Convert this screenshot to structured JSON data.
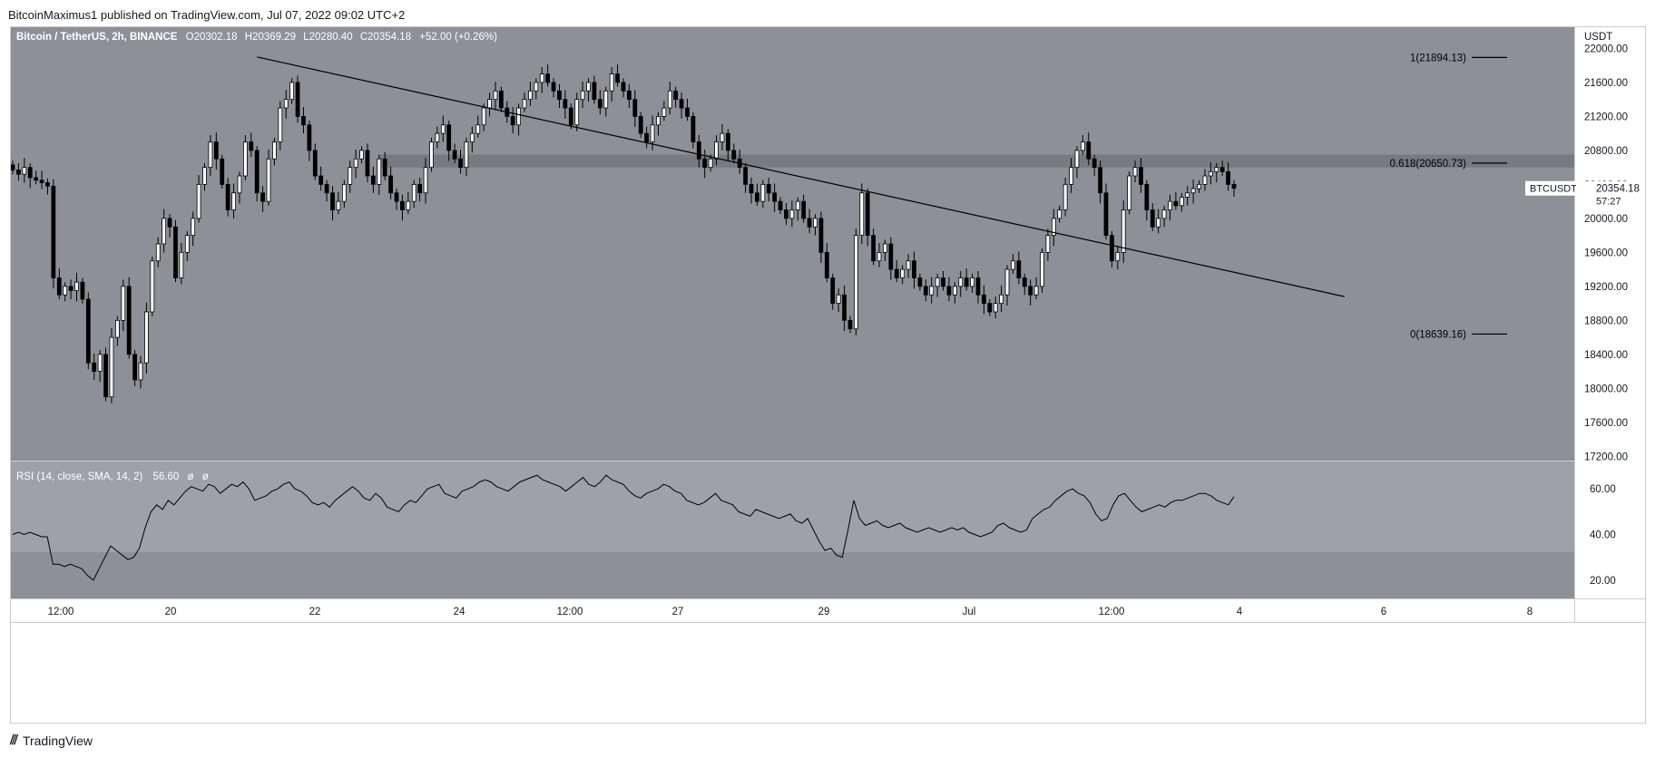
{
  "publish_line": "BitcoinMaximus1 published on TradingView.com, Jul 07, 2022 09:02 UTC+2",
  "footer_brand": "TradingView",
  "colors": {
    "main_bg": "#8e9098",
    "rsi_bg": "#8e9098",
    "rsi_band": "#9fa1a8",
    "axis_bg": "#ffffff",
    "up_body": "#ffffff",
    "down_body": "#000000",
    "wick": "#000000",
    "resistance_zone": "#6e7078"
  },
  "header": {
    "symbol": "Bitcoin / TetherUS, 2h, BINANCE",
    "o_label": "O",
    "o_value": "20302.18",
    "h_label": "H",
    "h_value": "20369.29",
    "l_label": "L",
    "l_value": "20280.40",
    "c_label": "C",
    "c_value": "20354.18",
    "change": "+52.00 (+0.26%)"
  },
  "price_axis": {
    "currency": "USDT",
    "ticks": [
      "22000.00",
      "21600.00",
      "21200.00",
      "20800.00",
      "20400.00",
      "20000.00",
      "19600.00",
      "19200.00",
      "18800.00",
      "18400.00",
      "18000.00",
      "17600.00",
      "17200.00"
    ]
  },
  "rsi": {
    "label": "RSI (14, close, SMA, 14, 2)",
    "value": "56.60",
    "extra1": "ø",
    "extra2": "ø",
    "ticks": [
      "60.00",
      "40.00",
      "20.00"
    ]
  },
  "time_axis": {
    "ticks": [
      "12:00",
      "20",
      "22",
      "24",
      "12:00",
      "27",
      "29",
      "Jul",
      "12:00",
      "4",
      "6",
      "8"
    ]
  },
  "price_label": {
    "symbol": "BTCUSDT",
    "price": "20354.18",
    "countdown": "57:27"
  },
  "fib": {
    "levels": [
      {
        "label": "1(21894.13)",
        "value": 21894.13
      },
      {
        "label": "0.618(20650.73)",
        "value": 20650.73
      },
      {
        "label": "0(18639.16)",
        "value": 18639.16
      }
    ]
  },
  "chart_data": {
    "type": "candlestick",
    "title": "Bitcoin / TetherUS, 2h, BINANCE",
    "ylabel": "USDT",
    "ylim": [
      17150,
      22250
    ],
    "x_ticks": [
      "12:00",
      "20",
      "22",
      "24",
      "12:00",
      "27",
      "29",
      "Jul",
      "12:00",
      "4",
      "6",
      "8"
    ],
    "trendline": {
      "from": [
        42,
        21900
      ],
      "to": [
        229,
        19080
      ]
    },
    "resistance_zone": {
      "from_bar": 63,
      "low": 20600,
      "high": 20750
    },
    "series": [
      {
        "name": "BTCUSDT",
        "close": [
          20570,
          20520,
          20600,
          20480,
          20450,
          20420,
          20380,
          19300,
          19100,
          19200,
          19150,
          19250,
          19050,
          18300,
          18200,
          18400,
          17900,
          18600,
          18800,
          19200,
          18400,
          18100,
          18300,
          18900,
          19500,
          19700,
          20000,
          19900,
          19300,
          19600,
          19800,
          20000,
          20400,
          20600,
          20900,
          20700,
          20400,
          20100,
          20300,
          20500,
          20900,
          20800,
          20300,
          20200,
          20700,
          20900,
          21300,
          21400,
          21600,
          21200,
          21100,
          20800,
          20500,
          20400,
          20300,
          20100,
          20200,
          20400,
          20600,
          20700,
          20800,
          20500,
          20400,
          20700,
          20500,
          20300,
          20200,
          20100,
          20200,
          20400,
          20300,
          20600,
          20900,
          21000,
          21100,
          20800,
          20700,
          20600,
          20900,
          21000,
          21100,
          21300,
          21400,
          21500,
          21300,
          21200,
          21100,
          21300,
          21400,
          21500,
          21600,
          21700,
          21600,
          21500,
          21400,
          21300,
          21100,
          21400,
          21500,
          21600,
          21400,
          21300,
          21500,
          21700,
          21600,
          21500,
          21400,
          21200,
          21000,
          20900,
          21100,
          21200,
          21300,
          21500,
          21400,
          21300,
          21200,
          20900,
          20700,
          20600,
          20700,
          20900,
          21000,
          20800,
          20700,
          20600,
          20400,
          20300,
          20200,
          20400,
          20300,
          20200,
          20100,
          20000,
          20100,
          20200,
          20000,
          19900,
          20000,
          19600,
          19300,
          19000,
          19100,
          18800,
          18700,
          19800,
          20300,
          19800,
          19500,
          19600,
          19700,
          19400,
          19300,
          19400,
          19500,
          19300,
          19200,
          19100,
          19200,
          19300,
          19200,
          19100,
          19200,
          19300,
          19200,
          19300,
          19100,
          19000,
          18900,
          19000,
          19100,
          19400,
          19500,
          19300,
          19200,
          19100,
          19200,
          19600,
          19800,
          20000,
          20100,
          20400,
          20600,
          20800,
          20900,
          20700,
          20600,
          20300,
          19800,
          19500,
          19600,
          20100,
          20500,
          20600,
          20400,
          20100,
          19900,
          20000,
          20100,
          20200,
          20150,
          20250,
          20300,
          20350,
          20400,
          20500,
          20550,
          20600,
          20550,
          20400,
          20354.18
        ]
      }
    ],
    "rsi_series": {
      "name": "RSI (14, close, SMA, 14, 2)",
      "ylim": [
        12,
        72
      ],
      "values": [
        40,
        41,
        40,
        41,
        40,
        39,
        39,
        27,
        27,
        26,
        27,
        26,
        25,
        22,
        20,
        25,
        30,
        35,
        33,
        31,
        29,
        30,
        34,
        43,
        50,
        53,
        51,
        55,
        53,
        56,
        59,
        61,
        60,
        59,
        62,
        61,
        58,
        60,
        62,
        61,
        63,
        60,
        55,
        56,
        57,
        59,
        60,
        62,
        63,
        60,
        59,
        57,
        54,
        53,
        54,
        52,
        55,
        57,
        59,
        61,
        59,
        56,
        55,
        58,
        56,
        52,
        51,
        50,
        53,
        55,
        54,
        57,
        60,
        61,
        62,
        58,
        57,
        56,
        59,
        60,
        61,
        63,
        64,
        63,
        61,
        60,
        59,
        61,
        63,
        64,
        65,
        66,
        64,
        63,
        62,
        61,
        59,
        61,
        63,
        65,
        62,
        61,
        63,
        66,
        64,
        63,
        62,
        59,
        57,
        56,
        58,
        59,
        60,
        62,
        61,
        59,
        58,
        55,
        54,
        53,
        54,
        56,
        58,
        55,
        54,
        53,
        50,
        49,
        48,
        51,
        50,
        49,
        48,
        47,
        48,
        49,
        46,
        45,
        47,
        42,
        37,
        33,
        34,
        31,
        30,
        42,
        55,
        47,
        44,
        45,
        46,
        44,
        43,
        44,
        45,
        43,
        42,
        41,
        42,
        43,
        42,
        41,
        42,
        43,
        42,
        43,
        41,
        40,
        39,
        40,
        41,
        44,
        45,
        43,
        42,
        41,
        42,
        47,
        49,
        51,
        52,
        55,
        57,
        59,
        60,
        58,
        57,
        54,
        49,
        46,
        47,
        53,
        57,
        58,
        55,
        52,
        50,
        51,
        52,
        53,
        52,
        54,
        55,
        55,
        56,
        57,
        58,
        58,
        57,
        55,
        54,
        53,
        56.6
      ]
    }
  }
}
